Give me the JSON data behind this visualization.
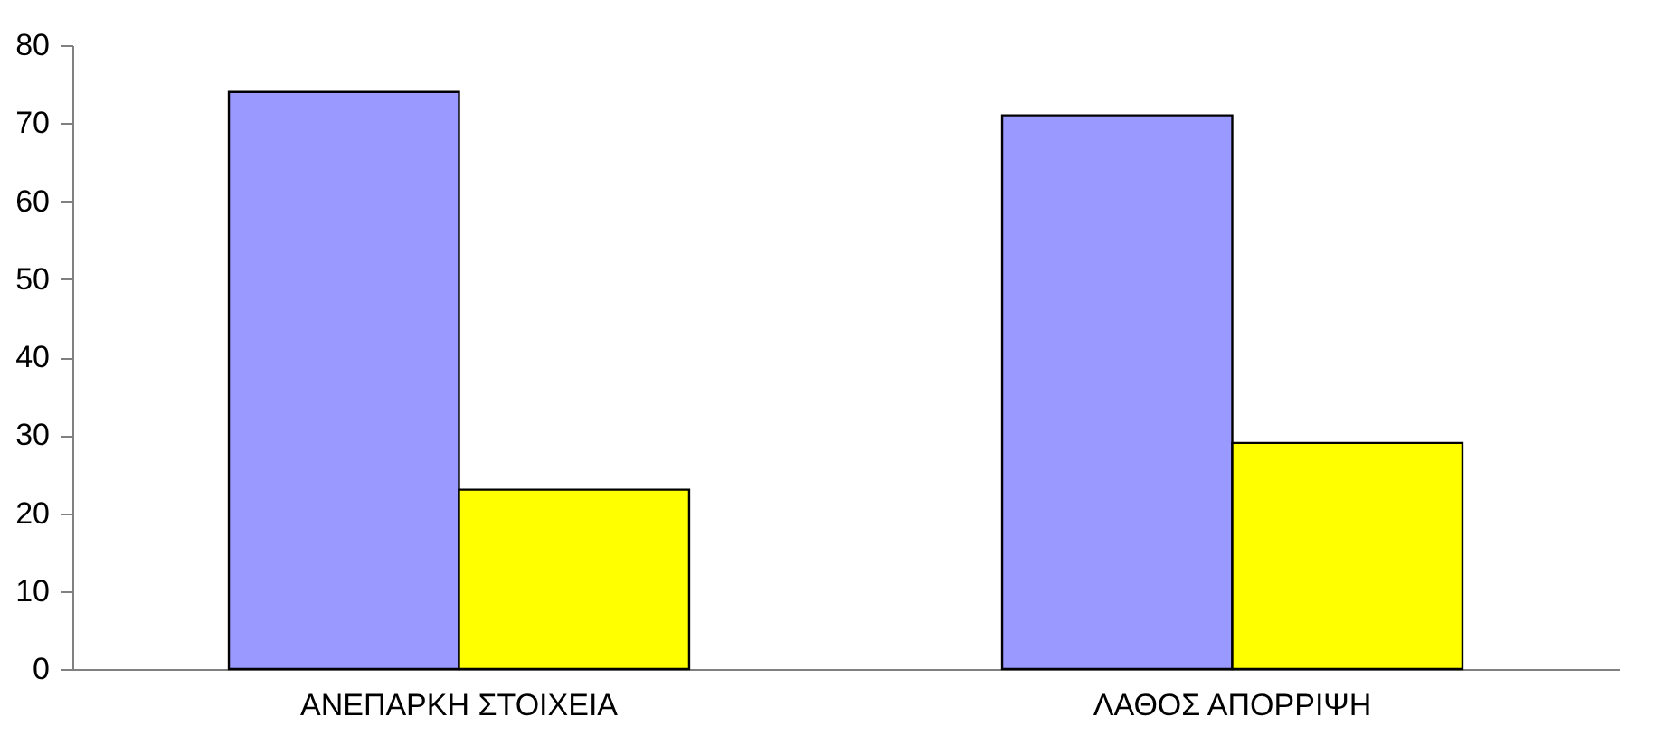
{
  "chart_data": {
    "type": "bar",
    "categories": [
      "ΑΝΕΠΑΡΚΗ ΣΤΟΙΧΕΙΑ",
      "ΛΑΘΟΣ ΑΠΟΡΡΙΨΗ"
    ],
    "series": [
      {
        "color": "#9999ff",
        "values": [
          74,
          71
        ]
      },
      {
        "color": "#ffff00",
        "values": [
          23,
          29
        ]
      }
    ],
    "ylim": [
      0,
      80
    ],
    "yticks": [
      0,
      10,
      20,
      30,
      40,
      50,
      60,
      70,
      80
    ],
    "grid": false,
    "legend": false
  }
}
